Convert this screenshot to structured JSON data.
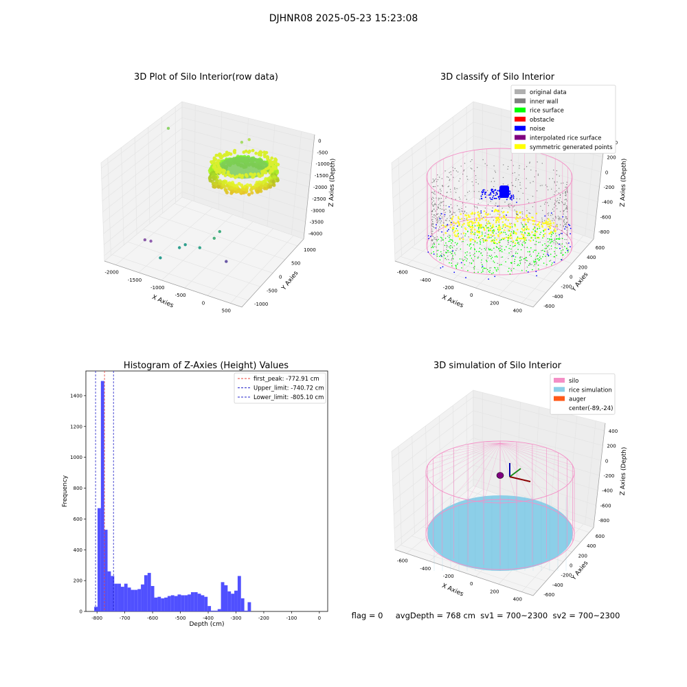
{
  "suptitle": "DJHNR08 2025-05-23 15:23:08",
  "footer": "flag = 0     avgDepth = 768 cm  sv1 = 700~2300  sv2 = 700~2300",
  "colors": {
    "hist_bar": "#5050ff",
    "first_peak": "#e8403a",
    "limit_lines": "#2020c8",
    "silo_pink": "#f48fc6",
    "rice_blue": "#8ccfe8",
    "auger": "#ff5a1a",
    "inner_wall": "#808080",
    "rice_surface": "#00ff00",
    "noise": "#0000ff",
    "symmetric": "#ffff00",
    "interpolated": "#800080",
    "obstacle": "#ff0000",
    "original": "#b0b0b0"
  },
  "chart_data": [
    {
      "type": "scatter",
      "panel": "top-left",
      "title": "3D Plot of Silo Interior(row data)",
      "xlabel": "X Axies",
      "ylabel": "Y Axies",
      "zlabel": "Z Axies (Depth)",
      "xticks": [
        "-2000",
        "-1500",
        "-1000",
        "-500",
        "0",
        "500"
      ],
      "yticks": [
        "-1000",
        "-500",
        "0",
        "500",
        "1000"
      ],
      "zticks": [
        "0",
        "-500",
        "-1000",
        "-1500",
        "-2000",
        "-2500",
        "-3000",
        "-3500",
        "-4000"
      ],
      "points": [
        {
          "x": -2300,
          "y": -600,
          "z": -1500,
          "color": "#8fd36a"
        },
        {
          "x": -2050,
          "y": 500,
          "z": -4050,
          "color": "#8b5ca8"
        },
        {
          "x": -2020,
          "y": 350,
          "z": -4200,
          "color": "#9060b0"
        },
        {
          "x": -1400,
          "y": 900,
          "z": -4000,
          "color": "#2a9d8f"
        },
        {
          "x": -1100,
          "y": 700,
          "z": -3700,
          "color": "#30a090"
        },
        {
          "x": -1000,
          "y": 650,
          "z": -3600,
          "color": "#2fa08e"
        },
        {
          "x": -700,
          "y": 600,
          "z": -3600,
          "color": "#33a58c"
        },
        {
          "x": -400,
          "y": 550,
          "z": -3200,
          "color": "#4bb07c"
        },
        {
          "x": -380,
          "y": 400,
          "z": -3100,
          "color": "#40ad80"
        },
        {
          "x": -300,
          "y": 300,
          "z": -4100,
          "color": "#6a58a6"
        },
        {
          "x": -300,
          "y": -200,
          "z": -700,
          "color": "#a8dc6a"
        },
        {
          "x": -200,
          "y": -300,
          "z": -650,
          "color": "#b8e05a"
        }
      ]
    },
    {
      "type": "scatter",
      "panel": "top-right",
      "title": "3D classify of Silo Interior",
      "xlabel": "X Axies",
      "ylabel": "Y Axies",
      "zlabel": "Z Axies (Depth)",
      "xticks": [
        "-600",
        "-400",
        "-200",
        "0",
        "200",
        "400"
      ],
      "yticks": [
        "-600",
        "-400",
        "-200",
        "0",
        "200",
        "400",
        "600"
      ],
      "zticks": [
        "400",
        "200",
        "0",
        "-200",
        "-400",
        "-600",
        "-800"
      ],
      "zticks_note": "top value partially hidden behind legend",
      "legend": [
        {
          "label": "original data",
          "color": "#b0b0b0"
        },
        {
          "label": "inner wall",
          "color": "#808080"
        },
        {
          "label": "rice surface",
          "color": "#00ff00"
        },
        {
          "label": "obstacle",
          "color": "#ff0000"
        },
        {
          "label": "noise",
          "color": "#0000ff"
        },
        {
          "label": "interpolated rice surface",
          "color": "#800080"
        },
        {
          "label": "symmetric generated points",
          "color": "#ffff00"
        }
      ]
    },
    {
      "type": "bar",
      "panel": "bottom-left",
      "title": "Histogram of Z-Axies (Height) Values",
      "xlabel": "Depth (cm)",
      "ylabel": "Frequency",
      "xlim": [
        -840,
        30
      ],
      "ylim": [
        0,
        1560
      ],
      "xticks": [
        -800,
        -700,
        -600,
        -500,
        -400,
        -300,
        -200,
        -100,
        0
      ],
      "yticks": [
        0,
        200,
        400,
        600,
        800,
        1000,
        1200,
        1400
      ],
      "bin_width": 12,
      "bin_start": -810,
      "values": [
        30,
        670,
        1495,
        530,
        260,
        230,
        180,
        180,
        160,
        180,
        155,
        140,
        140,
        145,
        175,
        235,
        250,
        165,
        90,
        95,
        85,
        90,
        100,
        105,
        100,
        110,
        105,
        105,
        110,
        125,
        125,
        115,
        105,
        95,
        35,
        5,
        5,
        15,
        190,
        170,
        130,
        115,
        135,
        230,
        85,
        5,
        60
      ],
      "lines": [
        {
          "label": "first_peak: -772.91 cm",
          "x": -772.91,
          "color": "#e8403a"
        },
        {
          "label": "Upper_limit: -740.72 cm",
          "x": -740.72,
          "color": "#2020c8"
        },
        {
          "label": "Lower_limit: -805.10 cm",
          "x": -805.1,
          "color": "#2020c8"
        }
      ]
    },
    {
      "type": "scatter",
      "panel": "bottom-right",
      "title": "3D simulation of Silo Interior",
      "xlabel": "X Axies",
      "ylabel": "Y Axies",
      "zlabel": "Z Axies (Depth)",
      "xticks": [
        "-600",
        "-400",
        "-200",
        "0",
        "200",
        "400"
      ],
      "yticks": [
        "-600",
        "-400",
        "-200",
        "0",
        "200",
        "400",
        "600"
      ],
      "zticks": [
        "400",
        "200",
        "0",
        "-200",
        "-400",
        "-600",
        "-800"
      ],
      "legend": [
        {
          "label": "silo",
          "color": "#f48fc6"
        },
        {
          "label": "rice simulation",
          "color": "#8ccfe8"
        },
        {
          "label": "auger",
          "color": "#ff5a1a"
        },
        {
          "label": "center(-89,-24)",
          "color": ""
        }
      ]
    }
  ]
}
